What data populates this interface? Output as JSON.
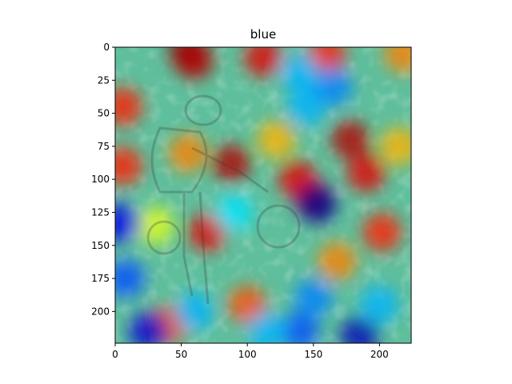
{
  "chart_data": {
    "type": "heatmap",
    "title": "blue",
    "xlabel": "",
    "ylabel": "",
    "xlim": [
      0,
      224
    ],
    "ylim": [
      224,
      0
    ],
    "x_ticks": [
      0,
      50,
      100,
      150,
      200
    ],
    "y_ticks": [
      0,
      25,
      50,
      75,
      100,
      125,
      150,
      175,
      200
    ],
    "colormap": "jet",
    "overlay_alpha": 0.5,
    "grid": false,
    "heat_blobs": [
      {
        "x": 55,
        "y": 4,
        "value": 1.0
      },
      {
        "x": 60,
        "y": 10,
        "value": 0.95
      },
      {
        "x": 112,
        "y": 8,
        "value": 0.9
      },
      {
        "x": 160,
        "y": 6,
        "value": 0.85
      },
      {
        "x": 218,
        "y": 5,
        "value": 0.75
      },
      {
        "x": 6,
        "y": 45,
        "value": 0.85
      },
      {
        "x": 6,
        "y": 90,
        "value": 0.85
      },
      {
        "x": 55,
        "y": 80,
        "value": 0.75
      },
      {
        "x": 88,
        "y": 88,
        "value": 0.95
      },
      {
        "x": 70,
        "y": 140,
        "value": 0.9
      },
      {
        "x": 40,
        "y": 210,
        "value": 0.8
      },
      {
        "x": 168,
        "y": 162,
        "value": 0.75
      },
      {
        "x": 178,
        "y": 70,
        "value": 0.95
      },
      {
        "x": 138,
        "y": 100,
        "value": 0.9
      },
      {
        "x": 190,
        "y": 95,
        "value": 0.9
      },
      {
        "x": 150,
        "y": 115,
        "value": 0.95
      },
      {
        "x": 202,
        "y": 140,
        "value": 0.85
      },
      {
        "x": 30,
        "y": 135,
        "value": 0.6
      },
      {
        "x": 100,
        "y": 195,
        "value": 0.8
      },
      {
        "x": 122,
        "y": 70,
        "value": 0.7
      },
      {
        "x": 215,
        "y": 75,
        "value": 0.7
      },
      {
        "x": 145,
        "y": 45,
        "value": 0.3
      },
      {
        "x": 165,
        "y": 30,
        "value": 0.25
      },
      {
        "x": 140,
        "y": 20,
        "value": 0.3
      },
      {
        "x": 153,
        "y": 119,
        "value": 0.02
      },
      {
        "x": 5,
        "y": 133,
        "value": 0.1
      },
      {
        "x": 90,
        "y": 125,
        "value": 0.35
      },
      {
        "x": 25,
        "y": 215,
        "value": 0.08
      },
      {
        "x": 185,
        "y": 218,
        "value": 0.05
      },
      {
        "x": 140,
        "y": 215,
        "value": 0.2
      },
      {
        "x": 8,
        "y": 175,
        "value": 0.2
      },
      {
        "x": 150,
        "y": 190,
        "value": 0.25
      },
      {
        "x": 115,
        "y": 215,
        "value": 0.3
      },
      {
        "x": 60,
        "y": 200,
        "value": 0.3
      },
      {
        "x": 200,
        "y": 195,
        "value": 0.3
      }
    ]
  }
}
